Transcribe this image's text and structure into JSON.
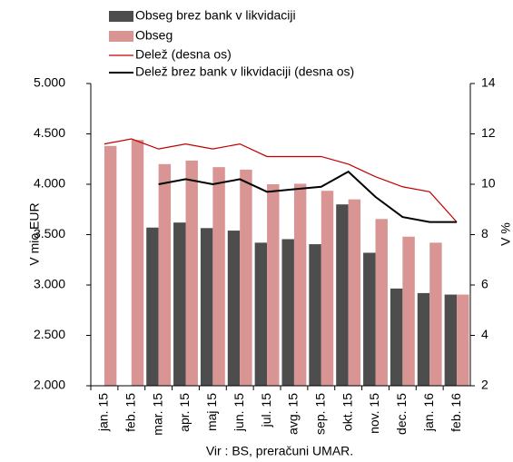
{
  "chart_data": {
    "type": "bar-line",
    "categories": [
      "jan. 15",
      "feb. 15",
      "mar. 15",
      "apr. 15",
      "maj 15",
      "jun. 15",
      "jul. 15",
      "avg. 15",
      "sep. 15",
      "okt. 15",
      "nov. 15",
      "dec. 15",
      "jan. 16",
      "feb. 16"
    ],
    "series": [
      {
        "name": "Obseg brez bank v likvidaciji",
        "type": "bar",
        "color": "#4d4d4d",
        "values": [
          null,
          null,
          3570,
          3620,
          3565,
          3540,
          3420,
          3455,
          3405,
          3800,
          3320,
          2965,
          2920,
          2905
        ]
      },
      {
        "name": "Obseg",
        "type": "bar",
        "color": "#d99594",
        "values": [
          4380,
          4440,
          4200,
          4235,
          4170,
          4145,
          4000,
          4005,
          3935,
          3850,
          3655,
          3480,
          3420,
          2905
        ]
      },
      {
        "name": "Delež (desna os)",
        "type": "line",
        "axis": "y2",
        "color": "#c00000",
        "values": [
          11.6,
          11.8,
          11.4,
          11.6,
          11.4,
          11.6,
          11.1,
          11.1,
          11.1,
          10.8,
          10.3,
          9.9,
          9.7,
          8.5
        ]
      },
      {
        "name": "Delež brez bank v likvidaciji (desna os)",
        "type": "line",
        "axis": "y2",
        "color": "#000000",
        "values": [
          null,
          null,
          10.0,
          10.2,
          10.0,
          10.2,
          9.7,
          9.8,
          9.9,
          10.5,
          9.5,
          8.7,
          8.5,
          8.5
        ]
      }
    ],
    "ylabel": "V mio EUR",
    "y2label": "V %",
    "ylim": [
      2000,
      5000
    ],
    "yticks": [
      {
        "value": 2000,
        "label": "2.000"
      },
      {
        "value": 2500,
        "label": "2.500"
      },
      {
        "value": 3000,
        "label": "3.000"
      },
      {
        "value": 3500,
        "label": "3.500"
      },
      {
        "value": 4000,
        "label": "4.000"
      },
      {
        "value": 4500,
        "label": "4.500"
      },
      {
        "value": 5000,
        "label": "5.000"
      }
    ],
    "y2lim": [
      2,
      14
    ],
    "y2ticks": [
      2,
      4,
      6,
      8,
      10,
      12,
      14
    ],
    "source": "Vir : BS, preračuni UMAR.",
    "legend": "top"
  }
}
